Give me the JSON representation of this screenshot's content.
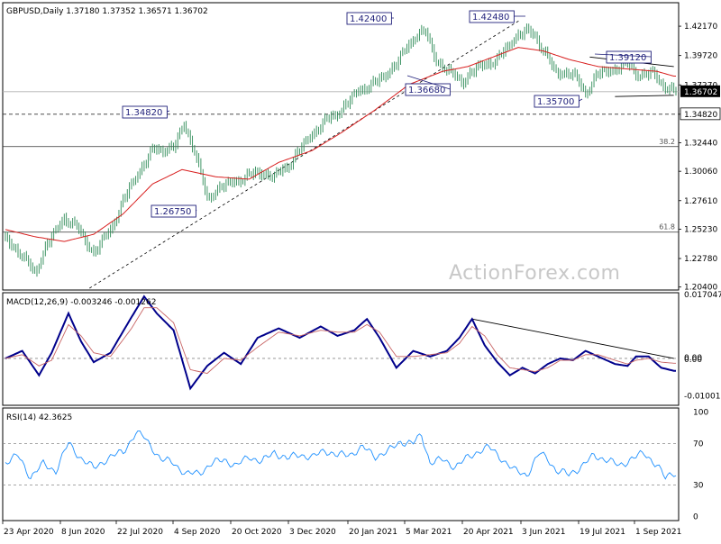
{
  "chart_data": [
    {
      "type": "candlestick",
      "title": "GBPUSD,Daily  1.37180 1.37352 1.36571 1.36702",
      "watermark": "ActionForex.com",
      "y_ticks": [
        "1.42170",
        "1.39720",
        "1.37270",
        "1.34820",
        "1.32440",
        "1.30060",
        "1.27610",
        "1.25230",
        "1.22780",
        "1.20400"
      ],
      "ylim": [
        1.2015,
        1.4413
      ],
      "current_price": "1.36702",
      "reference_price": "1.34820",
      "x_ticks": [
        "23 Apr 2020",
        "8 Jun 2020",
        "22 Jul 2020",
        "4 Sep 2020",
        "20 Oct 2020",
        "3 Dec 2020",
        "20 Jan 2021",
        "5 Mar 2021",
        "20 Apr 2021",
        "3 Jun 2021",
        "19 Jul 2021",
        "1 Sep 2021"
      ],
      "annotations": [
        "1.42400",
        "1.42480",
        "1.34820",
        "1.36680",
        "1.39120",
        "1.35700",
        "1.26750"
      ],
      "fib_levels": [
        {
          "label": "38.2",
          "price": 1.3212
        },
        {
          "label": "61.8",
          "price": 1.2498
        }
      ],
      "series": [
        {
          "name": "",
          "style": "candlestick",
          "color": "#2e8b57",
          "anchors": [
            [
              0,
              1.245
            ],
            [
              8,
              1.23
            ],
            [
              14,
              1.216
            ],
            [
              20,
              1.24
            ],
            [
              28,
              1.262
            ],
            [
              35,
              1.252
            ],
            [
              42,
              1.232
            ],
            [
              50,
              1.252
            ],
            [
              60,
              1.29
            ],
            [
              70,
              1.318
            ],
            [
              80,
              1.32
            ],
            [
              85,
              1.34
            ],
            [
              90,
              1.318
            ],
            [
              96,
              1.278
            ],
            [
              103,
              1.288
            ],
            [
              112,
              1.294
            ],
            [
              120,
              1.3
            ],
            [
              128,
              1.296
            ],
            [
              136,
              1.308
            ],
            [
              144,
              1.328
            ],
            [
              152,
              1.342
            ],
            [
              160,
              1.352
            ],
            [
              168,
              1.368
            ],
            [
              176,
              1.374
            ],
            [
              185,
              1.388
            ],
            [
              195,
              1.414
            ],
            [
              200,
              1.417
            ],
            [
              205,
              1.393
            ],
            [
              212,
              1.382
            ],
            [
              218,
              1.376
            ],
            [
              225,
              1.388
            ],
            [
              234,
              1.393
            ],
            [
              241,
              1.41
            ],
            [
              248,
              1.418
            ],
            [
              252,
              1.414
            ],
            [
              257,
              1.398
            ],
            [
              262,
              1.383
            ],
            [
              270,
              1.382
            ],
            [
              276,
              1.366
            ],
            [
              282,
              1.382
            ],
            [
              290,
              1.386
            ],
            [
              296,
              1.39
            ],
            [
              302,
              1.38
            ],
            [
              308,
              1.383
            ],
            [
              312,
              1.374
            ],
            [
              318,
              1.367
            ]
          ]
        },
        {
          "name": "",
          "style": "line",
          "color": "#d81e1e",
          "anchors": [
            [
              0,
              1.252
            ],
            [
              14,
              1.246
            ],
            [
              28,
              1.242
            ],
            [
              42,
              1.248
            ],
            [
              56,
              1.265
            ],
            [
              70,
              1.29
            ],
            [
              84,
              1.302
            ],
            [
              100,
              1.296
            ],
            [
              116,
              1.294
            ],
            [
              130,
              1.308
            ],
            [
              146,
              1.318
            ],
            [
              160,
              1.333
            ],
            [
              176,
              1.352
            ],
            [
              192,
              1.373
            ],
            [
              208,
              1.384
            ],
            [
              220,
              1.388
            ],
            [
              232,
              1.396
            ],
            [
              244,
              1.404
            ],
            [
              256,
              1.401
            ],
            [
              268,
              1.394
            ],
            [
              282,
              1.388
            ],
            [
              296,
              1.386
            ],
            [
              310,
              1.384
            ],
            [
              318,
              1.38
            ]
          ]
        }
      ]
    },
    {
      "type": "line",
      "title": "MACD(12,26,9) -0.003246 -0.001262",
      "y_ticks": [
        "0.017047",
        "0.00",
        "0.00",
        "-0.010013"
      ],
      "ylim": [
        -0.0125,
        0.0175
      ],
      "series": [
        {
          "name": "",
          "style": "line",
          "color": "#00008b",
          "anchors": [
            [
              0,
              0.0
            ],
            [
              8,
              0.002
            ],
            [
              16,
              -0.0045
            ],
            [
              22,
              0.0015
            ],
            [
              30,
              0.012
            ],
            [
              36,
              0.0045
            ],
            [
              42,
              -0.001
            ],
            [
              50,
              0.0015
            ],
            [
              60,
              0.011
            ],
            [
              66,
              0.0165
            ],
            [
              72,
              0.012
            ],
            [
              80,
              0.0075
            ],
            [
              88,
              -0.008
            ],
            [
              96,
              -0.002
            ],
            [
              104,
              0.0015
            ],
            [
              112,
              -0.0015
            ],
            [
              120,
              0.0055
            ],
            [
              130,
              0.008
            ],
            [
              140,
              0.0055
            ],
            [
              150,
              0.0085
            ],
            [
              158,
              0.006
            ],
            [
              166,
              0.0075
            ],
            [
              172,
              0.0105
            ],
            [
              178,
              0.0055
            ],
            [
              186,
              -0.0025
            ],
            [
              194,
              0.002
            ],
            [
              202,
              0.0005
            ],
            [
              210,
              0.002
            ],
            [
              216,
              0.0055
            ],
            [
              222,
              0.0105
            ],
            [
              228,
              0.0035
            ],
            [
              234,
              -0.001
            ],
            [
              240,
              -0.0045
            ],
            [
              246,
              -0.0025
            ],
            [
              252,
              -0.004
            ],
            [
              258,
              -0.0015
            ],
            [
              264,
              0.0
            ],
            [
              270,
              -0.0005
            ],
            [
              276,
              0.002
            ],
            [
              282,
              0.0005
            ],
            [
              290,
              -0.0015
            ],
            [
              296,
              -0.002
            ],
            [
              300,
              0.0005
            ],
            [
              306,
              0.0005
            ],
            [
              312,
              -0.0025
            ],
            [
              318,
              -0.0033
            ]
          ]
        },
        {
          "name": "",
          "style": "line",
          "color": "#c86464",
          "anchors": [
            [
              0,
              0.0
            ],
            [
              8,
              0.001
            ],
            [
              16,
              -0.002
            ],
            [
              22,
              -0.0005
            ],
            [
              30,
              0.009
            ],
            [
              36,
              0.006
            ],
            [
              42,
              0.0015
            ],
            [
              50,
              0.0005
            ],
            [
              60,
              0.008
            ],
            [
              66,
              0.0135
            ],
            [
              72,
              0.0135
            ],
            [
              80,
              0.0095
            ],
            [
              88,
              -0.003
            ],
            [
              96,
              -0.004
            ],
            [
              104,
              0.0
            ],
            [
              112,
              -0.0005
            ],
            [
              120,
              0.003
            ],
            [
              130,
              0.007
            ],
            [
              140,
              0.006
            ],
            [
              150,
              0.0075
            ],
            [
              158,
              0.007
            ],
            [
              166,
              0.007
            ],
            [
              172,
              0.009
            ],
            [
              178,
              0.007
            ],
            [
              186,
              0.0005
            ],
            [
              194,
              0.0005
            ],
            [
              202,
              0.001
            ],
            [
              210,
              0.0015
            ],
            [
              216,
              0.004
            ],
            [
              222,
              0.0085
            ],
            [
              228,
              0.006
            ],
            [
              234,
              0.001
            ],
            [
              240,
              -0.0025
            ],
            [
              246,
              -0.003
            ],
            [
              252,
              -0.0035
            ],
            [
              258,
              -0.0025
            ],
            [
              264,
              -0.0005
            ],
            [
              270,
              -0.0005
            ],
            [
              276,
              0.001
            ],
            [
              282,
              0.001
            ],
            [
              290,
              -0.0005
            ],
            [
              296,
              -0.0015
            ],
            [
              300,
              -0.0005
            ],
            [
              306,
              0.0
            ],
            [
              312,
              -0.001
            ],
            [
              318,
              -0.0013
            ]
          ]
        }
      ]
    },
    {
      "type": "line",
      "title": "RSI(14) 42.3625",
      "y_ticks": [
        "100",
        "70",
        "30",
        "0"
      ],
      "ylim": [
        -4,
        104
      ],
      "series": [
        {
          "name": "",
          "style": "line",
          "color": "#1e90ff",
          "anchors": [
            [
              0,
              52
            ],
            [
              6,
              58
            ],
            [
              12,
              38
            ],
            [
              18,
              50
            ],
            [
              24,
              44
            ],
            [
              30,
              70
            ],
            [
              36,
              56
            ],
            [
              42,
              46
            ],
            [
              48,
              55
            ],
            [
              56,
              62
            ],
            [
              62,
              80
            ],
            [
              66,
              76
            ],
            [
              70,
              66
            ],
            [
              74,
              54
            ],
            [
              80,
              52
            ],
            [
              86,
              40
            ],
            [
              92,
              42
            ],
            [
              98,
              50
            ],
            [
              104,
              55
            ],
            [
              110,
              48
            ],
            [
              116,
              58
            ],
            [
              122,
              52
            ],
            [
              128,
              62
            ],
            [
              134,
              55
            ],
            [
              140,
              60
            ],
            [
              146,
              56
            ],
            [
              152,
              64
            ],
            [
              158,
              58
            ],
            [
              164,
              60
            ],
            [
              170,
              66
            ],
            [
              176,
              58
            ],
            [
              182,
              62
            ],
            [
              188,
              72
            ],
            [
              194,
              70
            ],
            [
              198,
              78
            ],
            [
              202,
              52
            ],
            [
              208,
              54
            ],
            [
              214,
              48
            ],
            [
              220,
              56
            ],
            [
              226,
              64
            ],
            [
              230,
              66
            ],
            [
              236,
              56
            ],
            [
              242,
              44
            ],
            [
              248,
              40
            ],
            [
              254,
              60
            ],
            [
              258,
              56
            ],
            [
              262,
              44
            ],
            [
              268,
              40
            ],
            [
              274,
              48
            ],
            [
              280,
              58
            ],
            [
              286,
              55
            ],
            [
              292,
              48
            ],
            [
              298,
              56
            ],
            [
              304,
              60
            ],
            [
              310,
              50
            ],
            [
              314,
              36
            ],
            [
              318,
              42
            ]
          ]
        }
      ]
    }
  ],
  "icons": {
    "price_tag_current": "price-tag",
    "price_tag_reference": "price-tag"
  },
  "colors": {
    "bull_candle": "#2e8b57",
    "ma": "#d81e1e",
    "macd": "#00008b",
    "macd_signal": "#c86464",
    "rsi": "#1e90ff",
    "callout_border": "#1f1f7a",
    "current_tag": "#000000"
  }
}
